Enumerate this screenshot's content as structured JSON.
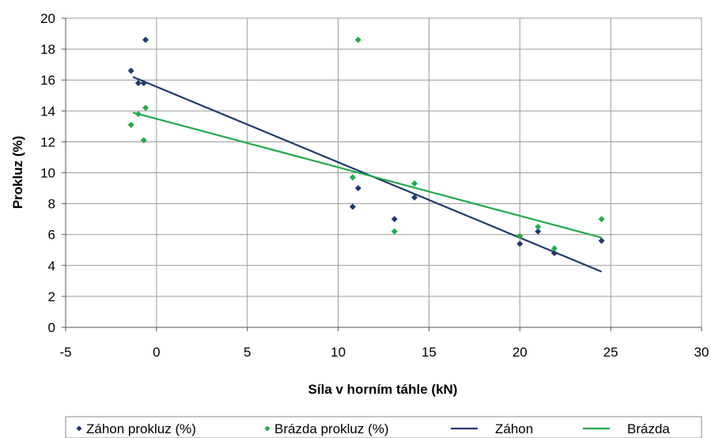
{
  "chart_data": {
    "type": "scatter",
    "title": "",
    "xlabel": "Síla v horním táhle (kN)",
    "ylabel": "Prokluz (%)",
    "xlim": [
      -5,
      30
    ],
    "ylim": [
      0,
      20
    ],
    "xticks": [
      -5,
      0,
      5,
      10,
      15,
      20,
      25,
      30
    ],
    "yticks": [
      0,
      2,
      4,
      6,
      8,
      10,
      12,
      14,
      16,
      18,
      20
    ],
    "grid": true,
    "legend_position": "bottom",
    "series": [
      {
        "name": "Záhon prokluz (%)",
        "kind": "points",
        "color": "#1f3a6e",
        "marker": "diamond",
        "points": [
          [
            -0.6,
            18.6
          ],
          [
            -1.4,
            16.6
          ],
          [
            -1.0,
            15.8
          ],
          [
            -0.7,
            15.8
          ],
          [
            11.1,
            9.0
          ],
          [
            10.8,
            7.8
          ],
          [
            13.1,
            7.0
          ],
          [
            14.2,
            8.4
          ],
          [
            20.0,
            5.4
          ],
          [
            21.0,
            6.2
          ],
          [
            21.9,
            4.8
          ],
          [
            24.5,
            5.6
          ]
        ]
      },
      {
        "name": "Brázda prokluz (%)",
        "kind": "points",
        "color": "#22aa4a",
        "marker": "diamond",
        "points": [
          [
            11.1,
            18.6
          ],
          [
            -0.6,
            14.2
          ],
          [
            -1.0,
            13.8
          ],
          [
            -1.4,
            13.1
          ],
          [
            -0.7,
            12.1
          ],
          [
            10.8,
            9.7
          ],
          [
            14.2,
            9.3
          ],
          [
            13.1,
            6.2
          ],
          [
            20.0,
            5.9
          ],
          [
            21.0,
            6.5
          ],
          [
            21.9,
            5.1
          ],
          [
            24.5,
            7.0
          ]
        ]
      },
      {
        "name": "Záhon",
        "kind": "line",
        "color": "#1f3a6e",
        "points": [
          [
            -1.3,
            16.2
          ],
          [
            24.5,
            3.6
          ]
        ]
      },
      {
        "name": "Brázda",
        "kind": "line",
        "color": "#22aa4a",
        "points": [
          [
            -1.3,
            13.9
          ],
          [
            24.5,
            5.8
          ]
        ]
      }
    ]
  }
}
